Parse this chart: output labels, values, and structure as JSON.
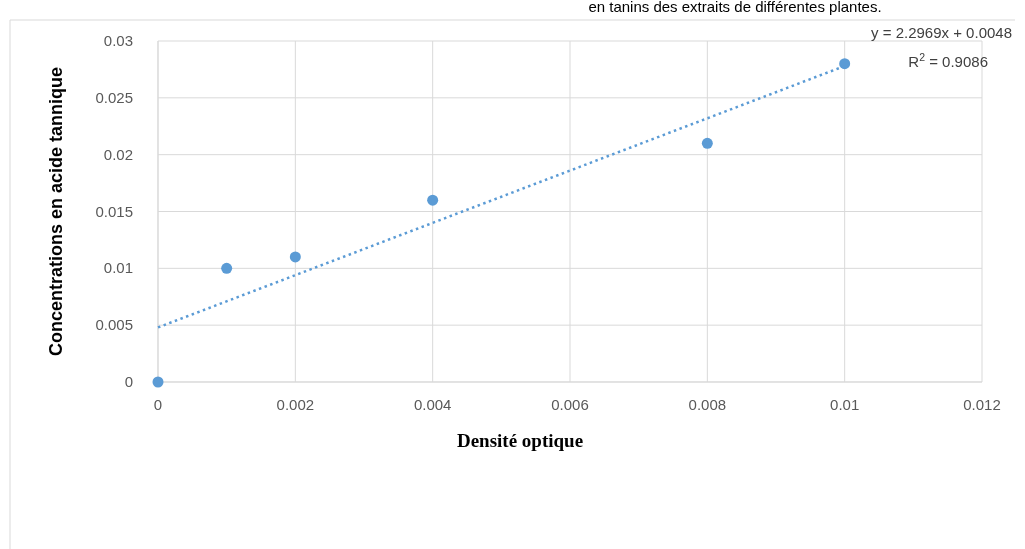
{
  "chart_data": {
    "type": "scatter",
    "xlabel": "Densité optique",
    "ylabel": "Concentrations en acide tannique",
    "annotations": [
      "en tanins des extraits de différentes plantes.",
      "y = 2.2969x  + 0.0048",
      "R$^{2}$ = 0.9086"
    ],
    "series": [
      {
        "color": "#5b9bd5",
        "x": [
          0,
          0.001,
          0.002,
          0.004,
          0.008,
          0.01
        ],
        "values": [
          0,
          0.01,
          0.011,
          0.016,
          0.021,
          0.028
        ],
        "marker": "circle"
      },
      {
        "type": "line",
        "color": "#5b9bd5",
        "x": [
          0,
          0.01
        ],
        "values": [
          0.0048,
          0.0278
        ],
        "line_style": "dotted"
      }
    ],
    "xlim": [
      0,
      0.012
    ],
    "xticks": [
      0,
      0.002,
      0.004,
      0.006,
      0.008,
      0.01,
      0.012
    ],
    "ylim": [
      0,
      0.03
    ],
    "yticks": [
      0,
      0.005,
      0.01,
      0.015,
      0.02,
      0.025,
      0.03
    ],
    "grid": true
  }
}
